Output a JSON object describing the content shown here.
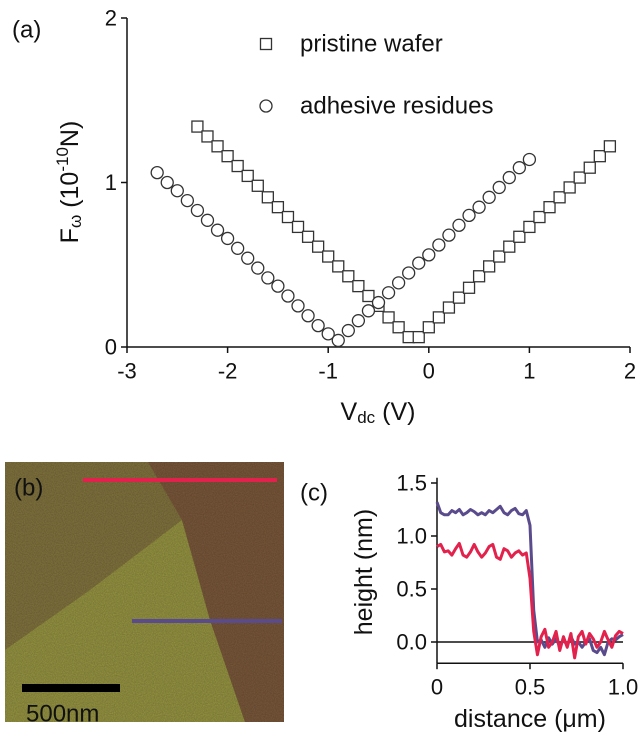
{
  "chart_data": [
    {
      "type": "scatter",
      "panel_label": "(a)",
      "xlabel": [
        {
          "text": "V"
        },
        {
          "text": "dc",
          "shift": "sub"
        },
        {
          "text": " (V)"
        }
      ],
      "ylabel": [
        {
          "text": "F"
        },
        {
          "text": "ω",
          "shift": "sub"
        },
        {
          "text": " (10"
        },
        {
          "text": "-10",
          "shift": "super"
        },
        {
          "text": "N)"
        }
      ],
      "xlim": [
        -3,
        2
      ],
      "ylim": [
        0,
        2
      ],
      "xticks": [
        -3,
        -2,
        -1,
        0,
        1,
        2
      ],
      "yticks": [
        0,
        1,
        2
      ],
      "series": [
        {
          "name": "pristine wafer",
          "marker": "square",
          "color": "#333333",
          "x": [
            -2.3,
            -2.2,
            -2.1,
            -2.0,
            -1.9,
            -1.8,
            -1.7,
            -1.6,
            -1.5,
            -1.4,
            -1.3,
            -1.2,
            -1.1,
            -1.0,
            -0.9,
            -0.8,
            -0.7,
            -0.6,
            -0.5,
            -0.4,
            -0.3,
            -0.2,
            -0.1,
            0.0,
            0.1,
            0.2,
            0.3,
            0.4,
            0.5,
            0.6,
            0.7,
            0.8,
            0.9,
            1.0,
            1.1,
            1.2,
            1.3,
            1.4,
            1.5,
            1.6,
            1.7,
            1.8
          ],
          "values": [
            1.34,
            1.28,
            1.22,
            1.16,
            1.1,
            1.04,
            0.98,
            0.91,
            0.85,
            0.79,
            0.73,
            0.67,
            0.61,
            0.55,
            0.49,
            0.43,
            0.37,
            0.31,
            0.25,
            0.18,
            0.12,
            0.06,
            0.06,
            0.12,
            0.18,
            0.24,
            0.3,
            0.36,
            0.43,
            0.49,
            0.55,
            0.61,
            0.67,
            0.73,
            0.79,
            0.85,
            0.91,
            0.97,
            1.03,
            1.09,
            1.16,
            1.22
          ]
        },
        {
          "name": "adhesive residues",
          "marker": "circle",
          "color": "#333333",
          "x": [
            -2.7,
            -2.6,
            -2.5,
            -2.4,
            -2.3,
            -2.2,
            -2.1,
            -2.0,
            -1.9,
            -1.8,
            -1.7,
            -1.6,
            -1.5,
            -1.4,
            -1.3,
            -1.2,
            -1.1,
            -1.0,
            -0.9,
            -0.8,
            -0.7,
            -0.6,
            -0.5,
            -0.4,
            -0.3,
            -0.2,
            -0.1,
            0.0,
            0.1,
            0.2,
            0.3,
            0.4,
            0.5,
            0.6,
            0.7,
            0.8,
            0.9,
            1.0
          ],
          "values": [
            1.06,
            1.0,
            0.95,
            0.89,
            0.83,
            0.77,
            0.71,
            0.66,
            0.6,
            0.54,
            0.48,
            0.42,
            0.37,
            0.31,
            0.25,
            0.19,
            0.13,
            0.08,
            0.04,
            0.1,
            0.16,
            0.22,
            0.27,
            0.33,
            0.39,
            0.45,
            0.51,
            0.56,
            0.62,
            0.68,
            0.74,
            0.8,
            0.85,
            0.91,
            0.97,
            1.03,
            1.09,
            1.14
          ]
        }
      ]
    },
    {
      "type": "line",
      "panel_label": "(c)",
      "xlabel": [
        {
          "text": "distance (μm)"
        }
      ],
      "ylabel": [
        {
          "text": "height (nm)"
        }
      ],
      "xlim": [
        0,
        1
      ],
      "ylim": [
        -0.2,
        1.55
      ],
      "xticks": [
        0,
        0.5,
        {
          "value": 1,
          "label": "1.0"
        }
      ],
      "yticks": [
        {
          "value": 0,
          "label": "0.0"
        },
        0.5,
        {
          "value": 1,
          "label": "1.0"
        },
        1.5
      ],
      "zero_line": true,
      "x": [
        0,
        0.02,
        0.04,
        0.06,
        0.08,
        0.1,
        0.12,
        0.14,
        0.16,
        0.18,
        0.2,
        0.22,
        0.24,
        0.26,
        0.28,
        0.3,
        0.32,
        0.34,
        0.36,
        0.38,
        0.4,
        0.42,
        0.44,
        0.46,
        0.48,
        0.5,
        0.52,
        0.54,
        0.56,
        0.58,
        0.6,
        0.62,
        0.64,
        0.66,
        0.68,
        0.7,
        0.72,
        0.74,
        0.76,
        0.78,
        0.8,
        0.82,
        0.84,
        0.86,
        0.88,
        0.9,
        0.92,
        0.94,
        0.96,
        0.98,
        1
      ],
      "series": [
        {
          "color": "#5a4b8c",
          "values": [
            1.32,
            1.22,
            1.2,
            1.2,
            1.24,
            1.22,
            1.25,
            1.2,
            1.22,
            1.25,
            1.23,
            1.2,
            1.22,
            1.2,
            1.24,
            1.22,
            1.25,
            1.28,
            1.22,
            1.2,
            1.24,
            1.26,
            1.21,
            1.2,
            1.24,
            1.1,
            0.3,
            0.0,
            0.02,
            -0.05,
            0.04,
            -0.02,
            0.03,
            -0.04,
            0.02,
            -0.03,
            0.05,
            -0.02,
            0.0,
            -0.05,
            0.0,
            0.03,
            -0.08,
            -0.1,
            -0.05,
            -0.12,
            0.0,
            0.03,
            0.02,
            0.05,
            0.07
          ]
        },
        {
          "color": "#e2224c",
          "values": [
            0.9,
            0.92,
            0.85,
            0.86,
            0.82,
            0.88,
            0.93,
            0.82,
            0.8,
            0.85,
            0.92,
            0.85,
            0.8,
            0.84,
            0.9,
            0.92,
            0.8,
            0.78,
            0.88,
            0.86,
            0.8,
            0.84,
            0.86,
            0.82,
            0.84,
            0.6,
            0.1,
            -0.12,
            0.05,
            0.12,
            -0.05,
            0.0,
            0.1,
            -0.08,
            0.05,
            -0.05,
            0.08,
            -0.15,
            0.05,
            0.1,
            -0.02,
            0.08,
            0.03,
            -0.05,
            0.0,
            0.1,
            0.02,
            -0.05,
            0.06,
            0.1,
            0.08
          ]
        }
      ]
    }
  ],
  "image_panel": {
    "label": "(b)",
    "scale_bar": "500nm"
  }
}
